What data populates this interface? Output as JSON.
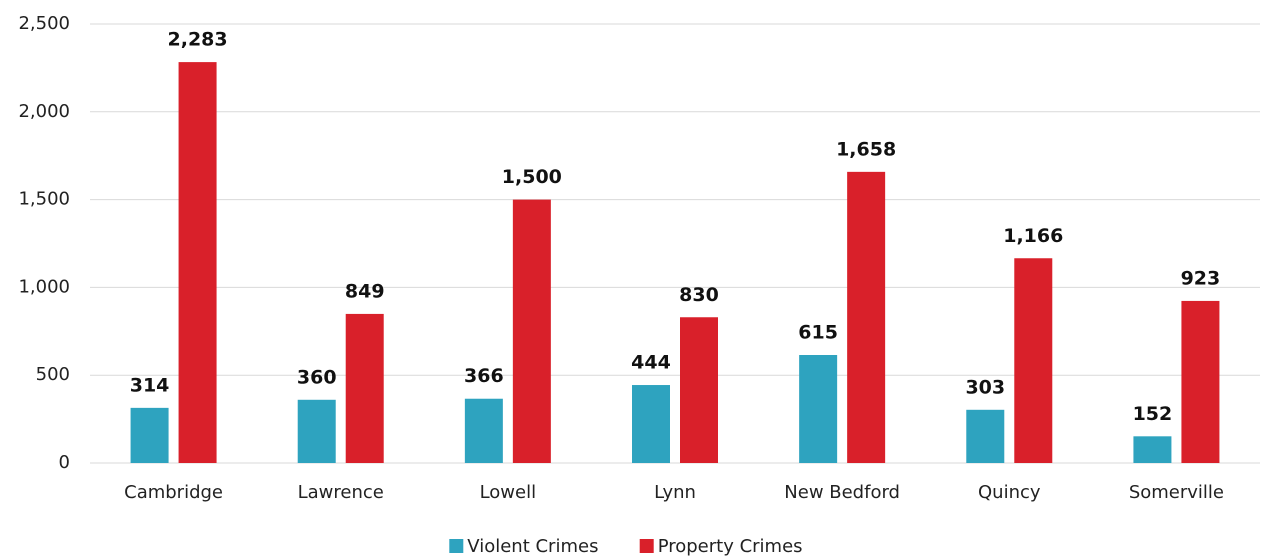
{
  "chart_data": {
    "type": "bar",
    "categories": [
      "Cambridge",
      "Lawrence",
      "Lowell",
      "Lynn",
      "New Bedford",
      "Quincy",
      "Somerville"
    ],
    "series": [
      {
        "name": "Violent Crimes",
        "color": "#2ea3bf",
        "values": [
          314,
          360,
          366,
          444,
          615,
          303,
          152
        ]
      },
      {
        "name": "Property Crimes",
        "color": "#d9202a",
        "values": [
          2283,
          849,
          1500,
          830,
          1658,
          1166,
          923
        ],
        "value_labels": [
          "2,283",
          "849",
          "1,500",
          "830",
          "1,658",
          "1,166",
          "923"
        ]
      }
    ],
    "ylim": [
      0,
      2500
    ],
    "yticks": [
      0,
      500,
      {
        "value": 1000,
        "label": "1,000"
      },
      {
        "value": 1500,
        "label": "1,500"
      },
      {
        "value": 2000,
        "label": "2,000"
      },
      {
        "value": 2500,
        "label": "2,500"
      }
    ],
    "grid": true,
    "legend": "bottom"
  }
}
